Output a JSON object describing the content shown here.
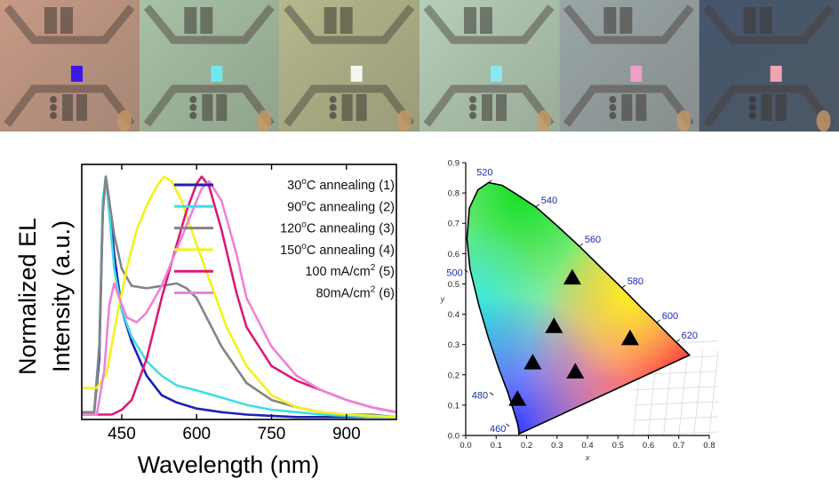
{
  "photos": [
    {
      "tint": "#c79a86",
      "pixel_color": "#3a18e8"
    },
    {
      "tint": "#a8c2a6",
      "pixel_color": "#6ee8ee"
    },
    {
      "tint": "#b6b88c",
      "pixel_color": "#f4f6ee"
    },
    {
      "tint": "#b6cfb8",
      "pixel_color": "#8ae8f2"
    },
    {
      "tint": "#9aa6a8",
      "pixel_color": "#ee9ec8"
    },
    {
      "tint": "#46566c",
      "pixel_color": "#f0a6b0"
    }
  ],
  "chart_data": [
    {
      "type": "line",
      "xlabel": "Wavelength (nm)",
      "ylabel_lines": [
        "Normalized EL",
        "Intensity (a.u.)"
      ],
      "xlim": [
        370,
        1000
      ],
      "ylim": [
        0,
        1.05
      ],
      "xticks": [
        450,
        600,
        750,
        900
      ],
      "legend": "top-right",
      "series": [
        {
          "name_main": "30",
          "name_sup": "o",
          "name_rest": "C annealing (1)",
          "color": "#1c22b0",
          "x": [
            370,
            395,
            405,
            412,
            418,
            425,
            435,
            450,
            470,
            500,
            530,
            560,
            600,
            650,
            700,
            750,
            800,
            850,
            900,
            950,
            1000
          ],
          "y": [
            0.03,
            0.03,
            0.25,
            0.85,
            1.0,
            0.9,
            0.68,
            0.45,
            0.32,
            0.18,
            0.1,
            0.07,
            0.045,
            0.03,
            0.02,
            0.015,
            0.01,
            0.01,
            0.01,
            0.01,
            0.01
          ]
        },
        {
          "name_main": "90",
          "name_sup": "o",
          "name_rest": "C annealing (2)",
          "color": "#3fdde6",
          "x": [
            370,
            395,
            405,
            412,
            418,
            425,
            435,
            450,
            470,
            500,
            530,
            560,
            600,
            650,
            700,
            750,
            800,
            850,
            900,
            950,
            1000
          ],
          "y": [
            0.03,
            0.03,
            0.3,
            0.9,
            1.0,
            0.85,
            0.62,
            0.45,
            0.34,
            0.24,
            0.18,
            0.14,
            0.12,
            0.09,
            0.06,
            0.04,
            0.03,
            0.02,
            0.015,
            0.01,
            0.01
          ]
        },
        {
          "name_main": "120",
          "name_sup": "o",
          "name_rest": "C annealing (3)",
          "color": "#848484",
          "x": [
            370,
            395,
            405,
            412,
            418,
            425,
            435,
            450,
            470,
            500,
            530,
            560,
            580,
            600,
            650,
            700,
            750,
            800,
            850,
            900,
            950,
            1000
          ],
          "y": [
            0.03,
            0.03,
            0.3,
            0.85,
            1.0,
            0.9,
            0.76,
            0.62,
            0.55,
            0.54,
            0.55,
            0.56,
            0.54,
            0.5,
            0.3,
            0.15,
            0.08,
            0.05,
            0.03,
            0.02,
            0.02,
            0.01
          ]
        },
        {
          "name_main": "150",
          "name_sup": "o",
          "name_rest": "C annealing (4)",
          "color": "#f2f21e",
          "x": [
            370,
            400,
            420,
            440,
            460,
            480,
            500,
            520,
            535,
            550,
            570,
            600,
            630,
            660,
            700,
            750,
            800,
            850,
            900,
            950,
            1000
          ],
          "y": [
            0.13,
            0.13,
            0.19,
            0.42,
            0.62,
            0.78,
            0.88,
            0.96,
            1.0,
            0.98,
            0.9,
            0.72,
            0.55,
            0.38,
            0.22,
            0.1,
            0.05,
            0.03,
            0.02,
            0.015,
            0.01
          ]
        },
        {
          "name_main": "100 mA/cm",
          "name_sup": "2",
          "name_rest": " (5)",
          "color": "#d81c78",
          "x": [
            370,
            400,
            430,
            450,
            470,
            500,
            530,
            560,
            580,
            600,
            610,
            625,
            650,
            680,
            700,
            750,
            800,
            850,
            900,
            950,
            1000
          ],
          "y": [
            0.02,
            0.02,
            0.02,
            0.04,
            0.08,
            0.25,
            0.5,
            0.72,
            0.86,
            0.97,
            1.0,
            0.96,
            0.78,
            0.52,
            0.38,
            0.22,
            0.16,
            0.12,
            0.08,
            0.05,
            0.03
          ]
        },
        {
          "name_main": "80mA/cm",
          "name_sup": "2",
          "name_rest": " (6)",
          "color": "#ee82d8",
          "x": [
            370,
            400,
            415,
            425,
            435,
            445,
            460,
            480,
            500,
            530,
            560,
            590,
            610,
            625,
            650,
            680,
            700,
            750,
            800,
            850,
            900,
            950,
            1000
          ],
          "y": [
            0.02,
            0.02,
            0.2,
            0.47,
            0.56,
            0.5,
            0.42,
            0.4,
            0.44,
            0.55,
            0.7,
            0.85,
            0.95,
            0.98,
            0.9,
            0.68,
            0.5,
            0.3,
            0.18,
            0.12,
            0.08,
            0.05,
            0.03
          ]
        }
      ]
    },
    {
      "type": "scatter",
      "xlabel": "x",
      "ylabel": "y",
      "xlim": [
        0,
        0.8
      ],
      "ylim": [
        0,
        0.9
      ],
      "xticks": [
        "0.0",
        "0.1",
        "0.2",
        "0.3",
        "0.4",
        "0.5",
        "0.6",
        "0.7",
        "0.8"
      ],
      "yticks": [
        "0.0",
        "0.1",
        "0.2",
        "0.3",
        "0.4",
        "0.5",
        "0.6",
        "0.7",
        "0.8",
        "0.9"
      ],
      "wavelength_labels": [
        {
          "label": "460",
          "x": 0.144,
          "y": 0.03
        },
        {
          "label": "480",
          "x": 0.091,
          "y": 0.133
        },
        {
          "label": "500",
          "x": 0.008,
          "y": 0.538
        },
        {
          "label": "520",
          "x": 0.074,
          "y": 0.834
        },
        {
          "label": "540",
          "x": 0.23,
          "y": 0.754
        },
        {
          "label": "560",
          "x": 0.373,
          "y": 0.624
        },
        {
          "label": "580",
          "x": 0.513,
          "y": 0.487
        },
        {
          "label": "600",
          "x": 0.627,
          "y": 0.373
        },
        {
          "label": "620",
          "x": 0.691,
          "y": 0.308
        }
      ],
      "points": [
        {
          "x": 0.17,
          "y": 0.12
        },
        {
          "x": 0.22,
          "y": 0.24
        },
        {
          "x": 0.29,
          "y": 0.36
        },
        {
          "x": 0.35,
          "y": 0.52
        },
        {
          "x": 0.36,
          "y": 0.21
        },
        {
          "x": 0.54,
          "y": 0.32
        }
      ]
    }
  ]
}
